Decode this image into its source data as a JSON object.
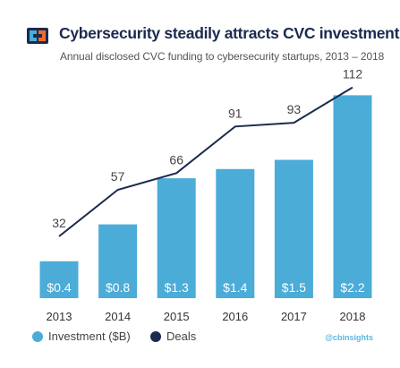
{
  "header": {
    "title": "Cybersecurity steadily attracts CVC investment",
    "subtitle": "Annual disclosed CVC funding to cybersecurity startups,  2013 – 2018"
  },
  "credit": "@cbinsights",
  "colors": {
    "bar": "#4bacd8",
    "line": "#1b2a4e",
    "title": "#1b2a4e",
    "logo_blue": "#4bacd8",
    "logo_orange": "#f26b2b",
    "credit": "#5db7dd"
  },
  "icons": {
    "logo": "cbinsights-logo-icon"
  },
  "chart_data": {
    "type": "bar+line",
    "categories": [
      "2013",
      "2014",
      "2015",
      "2016",
      "2017",
      "2018"
    ],
    "series": [
      {
        "name": "Investment ($B)",
        "type": "bar",
        "values": [
          0.4,
          0.8,
          1.3,
          1.4,
          1.5,
          2.2
        ],
        "labels": [
          "$0.4",
          "$0.8",
          "$1.3",
          "$1.4",
          "$1.5",
          "$2.2"
        ]
      },
      {
        "name": "Deals",
        "type": "line",
        "values": [
          32,
          57,
          66,
          91,
          93,
          112
        ],
        "labels": [
          "32",
          "57",
          "66",
          "91",
          "93",
          "112"
        ]
      }
    ],
    "legend_position": "bottom-left",
    "grid": false
  }
}
